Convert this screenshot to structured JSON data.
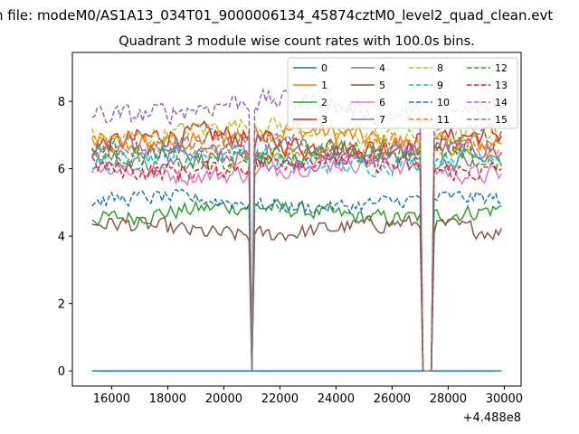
{
  "figure": {
    "suptitle": "n file: modeM0/AS1A13_034T01_9000006134_45874cztM0_level2_quad_clean.evt",
    "title": "Quadrant 3 module wise count rates with 100.0s bins."
  },
  "chart_data": {
    "type": "line",
    "title": "Quadrant 3 module wise count rates with 100.0s bins.",
    "xlabel": "",
    "ylabel": "",
    "x_offset_label": "+4.488e8",
    "x_range_offset": [
      15300,
      29900
    ],
    "xlim_offset": [
      14600,
      30600
    ],
    "ylim": [
      -0.45,
      9.45
    ],
    "xticks": [
      16000,
      18000,
      20000,
      22000,
      24000,
      26000,
      28000,
      30000
    ],
    "yticks": [
      0,
      2,
      4,
      6,
      8
    ],
    "grid": false,
    "legend": {
      "placement": "upper-right",
      "columns": 4
    },
    "gaps": [
      {
        "start": 20950,
        "end": 21050
      },
      {
        "start": 27050,
        "end": 27450
      }
    ],
    "series": [
      {
        "name": "0",
        "color": "#1f77b4",
        "style": "solid",
        "level": 0.0,
        "amp": 0.0
      },
      {
        "name": "1",
        "color": "#ff7f0e",
        "style": "solid",
        "level": 6.9,
        "amp": 0.45
      },
      {
        "name": "2",
        "color": "#2ca02c",
        "style": "solid",
        "level": 4.7,
        "amp": 0.35
      },
      {
        "name": "3",
        "color": "#d62728",
        "style": "solid",
        "level": 6.8,
        "amp": 0.45
      },
      {
        "name": "4",
        "color": "#9467bd",
        "style": "solid",
        "level": 6.4,
        "amp": 0.4
      },
      {
        "name": "5",
        "color": "#8c564b",
        "style": "solid",
        "level": 4.2,
        "amp": 0.35
      },
      {
        "name": "6",
        "color": "#e377c2",
        "style": "solid",
        "level": 6.0,
        "amp": 0.4
      },
      {
        "name": "7",
        "color": "#7f7f7f",
        "style": "solid",
        "level": 6.4,
        "amp": 0.4
      },
      {
        "name": "8",
        "color": "#bcbd22",
        "style": "dashed",
        "level": 7.1,
        "amp": 0.4
      },
      {
        "name": "9",
        "color": "#17becf",
        "style": "dashed",
        "level": 6.3,
        "amp": 0.4
      },
      {
        "name": "10",
        "color": "#1f77b4",
        "style": "dashed",
        "level": 5.0,
        "amp": 0.3
      },
      {
        "name": "11",
        "color": "#ff7f0e",
        "style": "dashed",
        "level": 6.6,
        "amp": 0.4
      },
      {
        "name": "12",
        "color": "#2ca02c",
        "style": "dashed",
        "level": 6.4,
        "amp": 0.45
      },
      {
        "name": "13",
        "color": "#d62728",
        "style": "dashed",
        "level": 6.1,
        "amp": 0.4
      },
      {
        "name": "14",
        "color": "#9467bd",
        "style": "dashed",
        "level": 7.8,
        "amp": 0.45
      },
      {
        "name": "15",
        "color": "#7f7f7f",
        "style": "dashed",
        "level": 6.7,
        "amp": 0.4
      }
    ]
  }
}
